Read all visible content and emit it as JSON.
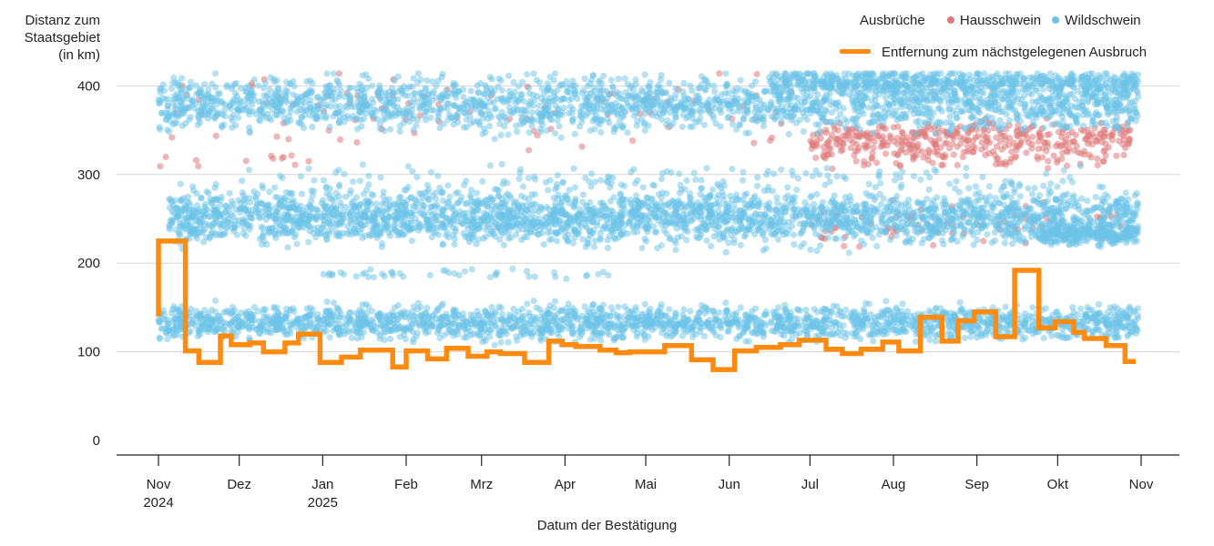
{
  "chart_data": {
    "type": "scatter",
    "ylabel": "Distanz zum Staatsgebiet (in km)",
    "ylabel_lines": [
      "Distanz zum",
      "Staatsgebiet",
      "(in km)"
    ],
    "xlabel": "Datum der Bestätigung",
    "ylim": [
      0,
      420
    ],
    "yticks": [
      0,
      100,
      200,
      300,
      400
    ],
    "xlim": [
      "2024-11-01",
      "2025-11-01"
    ],
    "xticks": [
      {
        "date": "2024-11-01",
        "label": "Nov",
        "label2": "2024"
      },
      {
        "date": "2024-12-01",
        "label": "Dez",
        "label2": ""
      },
      {
        "date": "2025-01-01",
        "label": "Jan",
        "label2": "2025"
      },
      {
        "date": "2025-02-01",
        "label": "Feb",
        "label2": ""
      },
      {
        "date": "2025-03-01",
        "label": "Mrz",
        "label2": ""
      },
      {
        "date": "2025-04-01",
        "label": "Apr",
        "label2": ""
      },
      {
        "date": "2025-05-01",
        "label": "Mai",
        "label2": ""
      },
      {
        "date": "2025-06-01",
        "label": "Jun",
        "label2": ""
      },
      {
        "date": "2025-07-01",
        "label": "Jul",
        "label2": ""
      },
      {
        "date": "2025-08-01",
        "label": "Aug",
        "label2": ""
      },
      {
        "date": "2025-09-01",
        "label": "Sep",
        "label2": ""
      },
      {
        "date": "2025-10-01",
        "label": "Okt",
        "label2": ""
      },
      {
        "date": "2025-11-01",
        "label": "Nov",
        "label2": ""
      }
    ],
    "grid": true,
    "legend": {
      "title": "Ausbrüche",
      "placement": "top-right",
      "items": [
        {
          "name": "Hausschwein",
          "color": "#e07a7a"
        },
        {
          "name": "Wildschwein",
          "color": "#6cc3e8"
        }
      ],
      "line_label": "Entfernung zum nächstgelegenen Ausbruch",
      "line_color": "#ff8a10"
    },
    "series": [
      {
        "name": "Entfernung zum nächstgelegenen Ausbruch",
        "type": "step-line",
        "color": "#ff8a10",
        "points": [
          [
            "2024-11-01",
            140
          ],
          [
            "2024-11-01",
            225
          ],
          [
            "2024-11-11",
            225
          ],
          [
            "2024-11-11",
            101
          ],
          [
            "2024-11-16",
            101
          ],
          [
            "2024-11-16",
            88
          ],
          [
            "2024-11-24",
            88
          ],
          [
            "2024-11-24",
            118
          ],
          [
            "2024-11-28",
            118
          ],
          [
            "2024-11-28",
            108
          ],
          [
            "2024-12-05",
            108
          ],
          [
            "2024-12-05",
            110
          ],
          [
            "2024-12-10",
            110
          ],
          [
            "2024-12-10",
            100
          ],
          [
            "2024-12-18",
            100
          ],
          [
            "2024-12-18",
            110
          ],
          [
            "2024-12-23",
            110
          ],
          [
            "2024-12-23",
            120
          ],
          [
            "2024-12-31",
            120
          ],
          [
            "2024-12-31",
            88
          ],
          [
            "2025-01-08",
            88
          ],
          [
            "2025-01-08",
            94
          ],
          [
            "2025-01-15",
            94
          ],
          [
            "2025-01-15",
            102
          ],
          [
            "2025-01-27",
            102
          ],
          [
            "2025-01-27",
            83
          ],
          [
            "2025-02-01",
            83
          ],
          [
            "2025-02-01",
            101
          ],
          [
            "2025-02-09",
            101
          ],
          [
            "2025-02-09",
            92
          ],
          [
            "2025-02-16",
            92
          ],
          [
            "2025-02-16",
            104
          ],
          [
            "2025-02-24",
            104
          ],
          [
            "2025-02-24",
            95
          ],
          [
            "2025-03-03",
            95
          ],
          [
            "2025-03-03",
            100
          ],
          [
            "2025-03-08",
            100
          ],
          [
            "2025-03-08",
            98
          ],
          [
            "2025-03-17",
            98
          ],
          [
            "2025-03-17",
            88
          ],
          [
            "2025-03-26",
            88
          ],
          [
            "2025-03-26",
            112
          ],
          [
            "2025-03-31",
            112
          ],
          [
            "2025-03-31",
            108
          ],
          [
            "2025-04-05",
            108
          ],
          [
            "2025-04-05",
            106
          ],
          [
            "2025-04-14",
            106
          ],
          [
            "2025-04-14",
            102
          ],
          [
            "2025-04-20",
            102
          ],
          [
            "2025-04-20",
            99
          ],
          [
            "2025-04-25",
            99
          ],
          [
            "2025-04-25",
            100
          ],
          [
            "2025-05-08",
            100
          ],
          [
            "2025-05-08",
            107
          ],
          [
            "2025-05-18",
            107
          ],
          [
            "2025-05-18",
            91
          ],
          [
            "2025-05-26",
            91
          ],
          [
            "2025-05-26",
            80
          ],
          [
            "2025-06-03",
            80
          ],
          [
            "2025-06-03",
            101
          ],
          [
            "2025-06-11",
            101
          ],
          [
            "2025-06-11",
            105
          ],
          [
            "2025-06-20",
            105
          ],
          [
            "2025-06-20",
            108
          ],
          [
            "2025-06-27",
            108
          ],
          [
            "2025-06-27",
            113
          ],
          [
            "2025-07-07",
            113
          ],
          [
            "2025-07-07",
            103
          ],
          [
            "2025-07-13",
            103
          ],
          [
            "2025-07-13",
            98
          ],
          [
            "2025-07-20",
            98
          ],
          [
            "2025-07-20",
            103
          ],
          [
            "2025-07-28",
            103
          ],
          [
            "2025-07-28",
            111
          ],
          [
            "2025-08-03",
            111
          ],
          [
            "2025-08-03",
            101
          ],
          [
            "2025-08-11",
            101
          ],
          [
            "2025-08-11",
            139
          ],
          [
            "2025-08-19",
            139
          ],
          [
            "2025-08-19",
            112
          ],
          [
            "2025-08-25",
            112
          ],
          [
            "2025-08-25",
            135
          ],
          [
            "2025-08-31",
            135
          ],
          [
            "2025-08-31",
            145
          ],
          [
            "2025-09-08",
            145
          ],
          [
            "2025-09-08",
            117
          ],
          [
            "2025-09-15",
            117
          ],
          [
            "2025-09-15",
            192
          ],
          [
            "2025-09-24",
            192
          ],
          [
            "2025-09-24",
            127
          ],
          [
            "2025-09-30",
            127
          ],
          [
            "2025-09-30",
            134
          ],
          [
            "2025-10-07",
            134
          ],
          [
            "2025-10-07",
            122
          ],
          [
            "2025-10-11",
            122
          ],
          [
            "2025-10-11",
            115
          ],
          [
            "2025-10-19",
            115
          ],
          [
            "2025-10-19",
            107
          ],
          [
            "2025-10-26",
            107
          ],
          [
            "2025-10-26",
            89
          ],
          [
            "2025-10-30",
            89
          ]
        ]
      },
      {
        "name": "Wildschwein",
        "type": "scatter-bands",
        "color": "#6cc3e8",
        "bands": [
          {
            "center": 133,
            "spread": 14,
            "from": "2024-11-01",
            "to": "2025-10-31",
            "per_day": 6
          },
          {
            "center": 252,
            "spread": 22,
            "from": "2024-11-05",
            "to": "2025-10-31",
            "per_day": 8
          },
          {
            "center": 380,
            "spread": 22,
            "from": "2024-11-01",
            "to": "2025-10-31",
            "per_day": 6
          },
          {
            "center": 405,
            "spread": 10,
            "from": "2025-06-15",
            "to": "2025-10-31",
            "per_day": 4
          },
          {
            "center": 232,
            "spread": 8,
            "from": "2025-09-25",
            "to": "2025-10-31",
            "per_day": 6
          },
          {
            "center": 188,
            "spread": 4,
            "from": "2025-01-01",
            "to": "2025-04-20",
            "per_day": 0.4
          },
          {
            "center": 295,
            "spread": 12,
            "from": "2024-12-01",
            "to": "2025-10-10",
            "per_day": 0.5
          }
        ]
      },
      {
        "name": "Hausschwein",
        "type": "scatter-bands",
        "color": "#e07a7a",
        "bands": [
          {
            "center": 340,
            "spread": 14,
            "from": "2025-07-01",
            "to": "2025-10-28",
            "per_day": 3
          },
          {
            "center": 320,
            "spread": 10,
            "from": "2025-07-05",
            "to": "2025-10-20",
            "per_day": 0.8
          },
          {
            "center": 245,
            "spread": 18,
            "from": "2025-07-01",
            "to": "2025-10-25",
            "per_day": 0.7
          },
          {
            "center": 370,
            "spread": 30,
            "from": "2024-11-01",
            "to": "2025-06-30",
            "per_day": 0.35
          },
          {
            "center": 318,
            "spread": 6,
            "from": "2024-11-01",
            "to": "2024-12-31",
            "per_day": 0.2
          }
        ]
      }
    ]
  }
}
